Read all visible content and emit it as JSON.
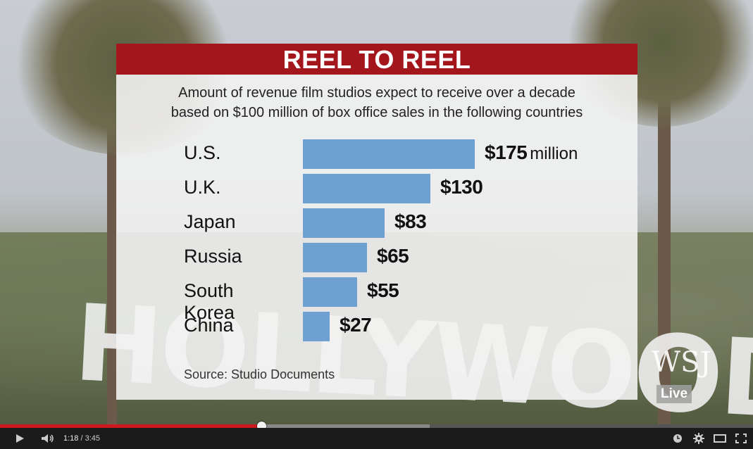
{
  "video": {
    "background_word": "HOLLYWOOD",
    "watermark": {
      "brand": "WSJ",
      "badge": "Live"
    }
  },
  "chart_data": {
    "type": "bar",
    "orientation": "horizontal",
    "title": "REEL TO REEL",
    "subtitle_lines": [
      "Amount of revenue film studios expect to receive over a decade",
      "based on $100 million of box office sales in the following countries"
    ],
    "categories": [
      "U.S.",
      "U.K.",
      "Japan",
      "Russia",
      "South Korea",
      "China"
    ],
    "values": [
      175,
      130,
      83,
      65,
      55,
      27
    ],
    "value_labels": [
      "$175",
      "$130",
      "$83",
      "$65",
      "$55",
      "$27"
    ],
    "first_value_unit": "million",
    "bar_color": "#6ea0d2",
    "title_bar_color": "#a3161b",
    "source": "Source: Studio Documents",
    "grid": false,
    "legend": "none"
  },
  "player": {
    "current_time": "1:18",
    "duration": "3:45",
    "time_separator": " / ",
    "played_fraction": 0.3467,
    "buffered_fraction": 0.571,
    "accent_color": "#cc181e",
    "icons": [
      "play-icon",
      "volume-icon",
      "watch-later-icon",
      "settings-icon",
      "theater-mode-icon",
      "fullscreen-icon"
    ]
  }
}
